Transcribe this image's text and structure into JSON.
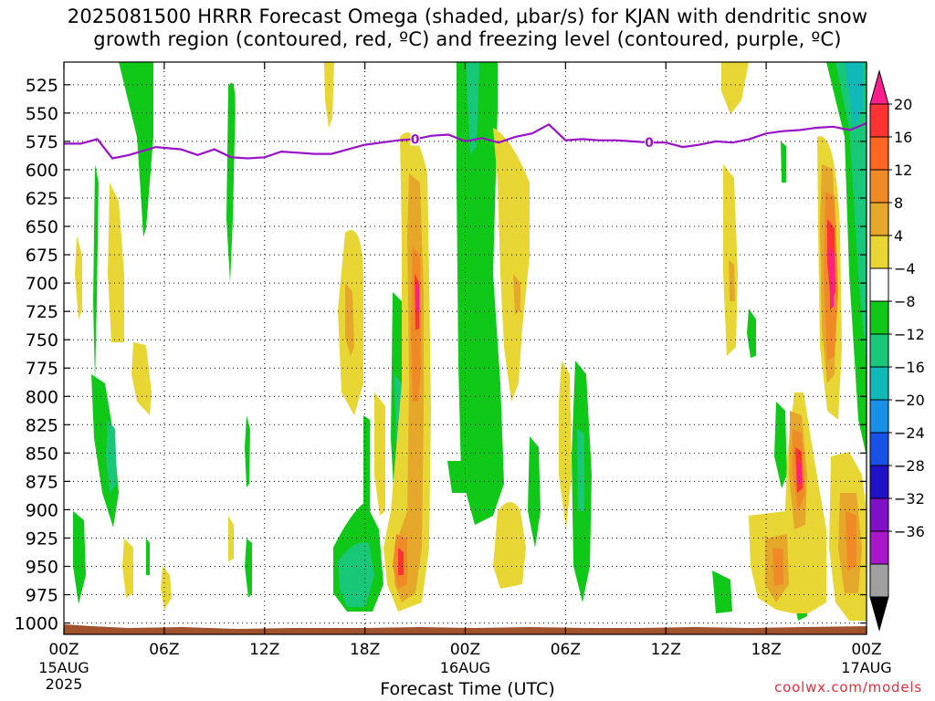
{
  "title": {
    "line1": "2025081500 HRRR Forecast Omega (shaded, μbar/s) for KJAN with dendritic snow",
    "line2": "growth region (contoured, red, ºC) and freezing level (contoured, purple, ºC)"
  },
  "watermark": "coolwx.com/models",
  "chart_data": {
    "type": "heatmap",
    "xlabel": "Forecast Time (UTC)",
    "ylabel": "",
    "x_ticks": [
      {
        "hour": 0,
        "label": "00Z",
        "sub1": "15AUG",
        "sub2": "2025"
      },
      {
        "hour": 6,
        "label": "06Z"
      },
      {
        "hour": 12,
        "label": "12Z"
      },
      {
        "hour": 18,
        "label": "18Z"
      },
      {
        "hour": 24,
        "label": "00Z",
        "sub1": "16AUG"
      },
      {
        "hour": 30,
        "label": "06Z"
      },
      {
        "hour": 36,
        "label": "12Z"
      },
      {
        "hour": 42,
        "label": "18Z"
      },
      {
        "hour": 48,
        "label": "00Z",
        "sub1": "17AUG"
      }
    ],
    "xlim_hours": [
      0,
      48
    ],
    "y_ticks": [
      "525",
      "550",
      "575",
      "600",
      "625",
      "650",
      "675",
      "700",
      "725",
      "750",
      "775",
      "800",
      "825",
      "850",
      "875",
      "900",
      "925",
      "950",
      "975",
      "1000"
    ],
    "ylim_hPa": [
      1010,
      505
    ],
    "colorbar": {
      "tick_labels": [
        "20",
        "16",
        "12",
        "8",
        "4",
        "−4",
        "−8",
        "−12",
        "−16",
        "−20",
        "−24",
        "−28",
        "−32",
        "−36"
      ],
      "colors": [
        "#ff1f8c",
        "#ff3333",
        "#ff6622",
        "#f08a26",
        "#e6a82a",
        "#e8d635",
        "#ffffff",
        "#10c818",
        "#18c878",
        "#10b8b8",
        "#1890e8",
        "#1850e8",
        "#2010c8",
        "#8010c8",
        "#a818c8",
        "#a0a0a0",
        "#000000"
      ]
    },
    "freezing_level": {
      "color": "#9912c8",
      "label": "0",
      "points": [
        [
          0,
          577
        ],
        [
          1,
          577
        ],
        [
          2,
          573
        ],
        [
          2.9,
          590
        ],
        [
          3.9,
          587
        ],
        [
          5.5,
          580
        ],
        [
          7,
          582
        ],
        [
          8,
          587
        ],
        [
          9,
          582
        ],
        [
          10,
          589
        ],
        [
          11,
          590
        ],
        [
          12,
          589
        ],
        [
          13,
          584
        ],
        [
          14,
          585
        ],
        [
          15,
          586
        ],
        [
          16,
          586
        ],
        [
          17,
          582
        ],
        [
          18,
          578
        ],
        [
          19,
          576
        ],
        [
          20,
          574
        ],
        [
          21,
          573
        ],
        [
          22,
          570
        ],
        [
          23,
          569
        ],
        [
          24,
          575
        ],
        [
          25,
          572
        ],
        [
          26,
          576
        ],
        [
          27,
          571
        ],
        [
          28,
          568
        ],
        [
          29,
          560
        ],
        [
          30,
          574
        ],
        [
          31,
          573
        ],
        [
          32,
          574
        ],
        [
          33,
          574
        ],
        [
          34,
          575
        ],
        [
          35,
          576
        ],
        [
          36,
          576
        ],
        [
          37,
          580
        ],
        [
          38,
          578
        ],
        [
          39,
          575
        ],
        [
          40,
          576
        ],
        [
          41,
          573
        ],
        [
          42,
          568
        ],
        [
          43,
          566
        ],
        [
          44,
          565
        ],
        [
          45,
          563
        ],
        [
          46,
          562
        ],
        [
          47,
          565
        ],
        [
          48,
          559
        ]
      ]
    },
    "omega_regions": [
      {
        "value": 4,
        "t": 19.4,
        "halfwidth": 0.7,
        "p_top": 615,
        "p_bottom": 755
      },
      {
        "value": 8,
        "t": 19.5,
        "halfwidth": 0.35,
        "p_top": 640,
        "p_bottom": 740
      },
      {
        "value": 4,
        "t": 21.3,
        "halfwidth": 1.1,
        "p_top": 555,
        "p_bottom": 985
      },
      {
        "value": 8,
        "t": 21.3,
        "halfwidth": 0.6,
        "p_top": 585,
        "p_bottom": 980
      },
      {
        "value": 12,
        "t": 21.3,
        "halfwidth": 0.3,
        "p_top": 640,
        "p_bottom": 960
      },
      {
        "value": 4,
        "t": 25.8,
        "halfwidth": 1.8,
        "p_top": 550,
        "p_bottom": 985
      },
      {
        "value": 8,
        "t": 25.8,
        "halfwidth": 0.4,
        "p_top": 610,
        "p_bottom": 720
      },
      {
        "value": 4,
        "t": 43.2,
        "halfwidth": 1.4,
        "p_top": 770,
        "p_bottom": 975
      },
      {
        "value": 12,
        "t": 43.5,
        "halfwidth": 0.5,
        "p_top": 790,
        "p_bottom": 880
      },
      {
        "value": 20,
        "t": 43.5,
        "halfwidth": 0.15,
        "p_top": 820,
        "p_bottom": 860
      },
      {
        "value": 4,
        "t": 46.2,
        "halfwidth": 0.9,
        "p_top": 555,
        "p_bottom": 760
      },
      {
        "value": 12,
        "t": 46.2,
        "halfwidth": 0.5,
        "p_top": 590,
        "p_bottom": 745
      },
      {
        "value": 20,
        "t": 46.2,
        "halfwidth": 0.2,
        "p_top": 630,
        "p_bottom": 720
      },
      {
        "value": -4,
        "t": 24.2,
        "halfwidth": 1.7,
        "p_top": 505,
        "p_bottom": 900
      },
      {
        "value": -4,
        "t": 4.8,
        "halfwidth": 0.6,
        "p_top": 505,
        "p_bottom": 620
      },
      {
        "value": -4,
        "t": 10,
        "halfwidth": 0.3,
        "p_top": 545,
        "p_bottom": 665
      },
      {
        "value": -8,
        "t": 2.8,
        "halfwidth": 0.6,
        "p_top": 760,
        "p_bottom": 880
      },
      {
        "value": -4,
        "t": 18,
        "halfwidth": 1.2,
        "p_top": 880,
        "p_bottom": 985
      },
      {
        "value": -8,
        "t": 18,
        "halfwidth": 0.6,
        "p_top": 910,
        "p_bottom": 980
      },
      {
        "value": -8,
        "t": 20.3,
        "halfwidth": 0.35,
        "p_top": 700,
        "p_bottom": 960
      },
      {
        "value": -8,
        "t": 34.5,
        "halfwidth": 0.4,
        "p_top": 745,
        "p_bottom": 975
      },
      {
        "value": -4,
        "t": 47.6,
        "halfwidth": 0.5,
        "p_top": 505,
        "p_bottom": 820
      },
      {
        "value": -8,
        "t": 47.6,
        "halfwidth": 0.3,
        "p_top": 505,
        "p_bottom": 720
      }
    ]
  }
}
